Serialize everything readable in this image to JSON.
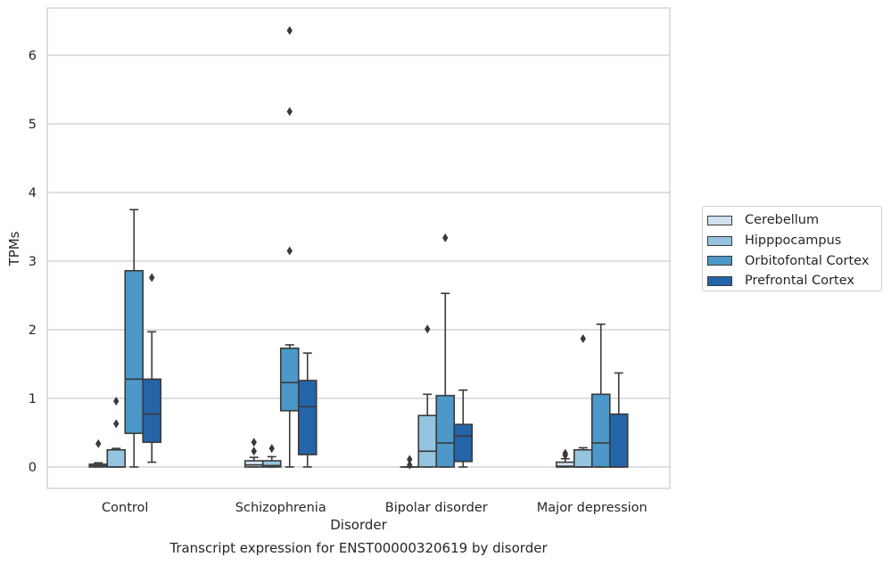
{
  "chart_data": {
    "type": "boxplot",
    "xlabel": "Disorder",
    "ylabel": "TPMs",
    "caption": "Transcript expression for ENST00000320619 by disorder",
    "categories": [
      "Control",
      "Schizophrenia",
      "Bipolar disorder",
      "Major depression"
    ],
    "yticks": [
      0,
      1,
      2,
      3,
      4,
      5,
      6
    ],
    "ylim": [
      -0.31,
      6.7
    ],
    "grid": "horizontal",
    "legend_position": "right",
    "series": [
      {
        "name": "Cerebellum",
        "color": "#d0e1f2",
        "boxes": [
          {
            "whisker_low": 0,
            "q1": 0,
            "median": 0.02,
            "q3": 0.04,
            "whisker_high": 0.06,
            "outliers": [
              0.34
            ]
          },
          {
            "whisker_low": 0,
            "q1": 0,
            "median": 0.03,
            "q3": 0.09,
            "whisker_high": 0.14,
            "outliers": [
              0.23,
              0.36
            ]
          },
          {
            "whisker_low": 0,
            "q1": 0,
            "median": 0,
            "q3": 0,
            "whisker_high": 0,
            "outliers": [
              0.03,
              0.11
            ]
          },
          {
            "whisker_low": 0,
            "q1": 0,
            "median": 0.01,
            "q3": 0.07,
            "whisker_high": 0.12,
            "outliers": [
              0.17,
              0.2
            ]
          }
        ]
      },
      {
        "name": "Hipppocampus",
        "color": "#94c4df",
        "boxes": [
          {
            "whisker_low": 0,
            "q1": 0,
            "median": 0,
            "q3": 0.25,
            "whisker_high": 0.27,
            "outliers": [
              0.63,
              0.96
            ]
          },
          {
            "whisker_low": 0,
            "q1": 0,
            "median": 0.02,
            "q3": 0.09,
            "whisker_high": 0.15,
            "outliers": [
              0.27
            ]
          },
          {
            "whisker_low": 0,
            "q1": 0,
            "median": 0.23,
            "q3": 0.75,
            "whisker_high": 1.06,
            "outliers": [
              2.01
            ]
          },
          {
            "whisker_low": 0,
            "q1": 0,
            "median": 0,
            "q3": 0.25,
            "whisker_high": 0.28,
            "outliers": [
              1.87
            ]
          }
        ]
      },
      {
        "name": "Orbitofontal Cortex",
        "color": "#4b98c9",
        "boxes": [
          {
            "whisker_low": 0,
            "q1": 0.49,
            "median": 1.28,
            "q3": 2.86,
            "whisker_high": 3.75,
            "outliers": []
          },
          {
            "whisker_low": 0,
            "q1": 0.82,
            "median": 1.23,
            "q3": 1.73,
            "whisker_high": 1.78,
            "outliers": [
              3.15,
              5.18,
              6.36
            ]
          },
          {
            "whisker_low": 0,
            "q1": 0,
            "median": 0.35,
            "q3": 1.04,
            "whisker_high": 2.53,
            "outliers": [
              3.34
            ]
          },
          {
            "whisker_low": 0,
            "q1": 0,
            "median": 0.35,
            "q3": 1.06,
            "whisker_high": 2.08,
            "outliers": []
          }
        ]
      },
      {
        "name": "Prefrontal Cortex",
        "color": "#2464a9",
        "boxes": [
          {
            "whisker_low": 0.07,
            "q1": 0.36,
            "median": 0.77,
            "q3": 1.28,
            "whisker_high": 1.97,
            "outliers": [
              2.76
            ]
          },
          {
            "whisker_low": 0,
            "q1": 0.18,
            "median": 0.88,
            "q3": 1.26,
            "whisker_high": 1.66,
            "outliers": []
          },
          {
            "whisker_low": 0,
            "q1": 0.08,
            "median": 0.45,
            "q3": 0.62,
            "whisker_high": 1.12,
            "outliers": []
          },
          {
            "whisker_low": 0,
            "q1": 0,
            "median": 0,
            "q3": 0.77,
            "whisker_high": 1.37,
            "outliers": []
          }
        ]
      }
    ]
  }
}
